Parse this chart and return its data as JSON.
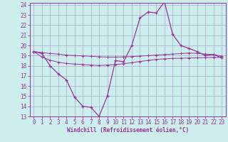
{
  "xlabel": "Windchill (Refroidissement éolien,°C)",
  "background_color": "#cceeed",
  "grid_color": "#aaaacc",
  "line_color": "#993399",
  "spine_color": "#993399",
  "x_hours": [
    0,
    1,
    2,
    3,
    4,
    5,
    6,
    7,
    8,
    9,
    10,
    11,
    12,
    13,
    14,
    15,
    16,
    17,
    18,
    19,
    20,
    21,
    22,
    23
  ],
  "temp_line": [
    19.4,
    19.2,
    18.0,
    17.2,
    16.6,
    14.9,
    14.0,
    13.9,
    13.0,
    15.0,
    18.5,
    18.4,
    20.0,
    22.7,
    23.3,
    23.2,
    24.3,
    21.1,
    20.0,
    19.7,
    19.4,
    19.0,
    19.1,
    18.8
  ],
  "max_line": [
    19.4,
    19.3,
    19.2,
    19.15,
    19.05,
    19.0,
    18.97,
    18.93,
    18.88,
    18.85,
    18.85,
    18.87,
    18.9,
    18.95,
    19.0,
    19.05,
    19.1,
    19.15,
    19.2,
    19.25,
    19.22,
    19.15,
    19.1,
    18.95
  ],
  "min_line": [
    19.4,
    18.85,
    18.55,
    18.35,
    18.22,
    18.17,
    18.12,
    18.07,
    18.02,
    18.07,
    18.12,
    18.2,
    18.3,
    18.42,
    18.52,
    18.62,
    18.68,
    18.72,
    18.74,
    18.76,
    18.78,
    18.8,
    18.82,
    18.82
  ],
  "ylim": [
    13,
    24
  ],
  "xlim": [
    0,
    23
  ],
  "yticks": [
    13,
    14,
    15,
    16,
    17,
    18,
    19,
    20,
    21,
    22,
    23,
    24
  ],
  "xticks": [
    0,
    1,
    2,
    3,
    4,
    5,
    6,
    7,
    8,
    9,
    10,
    11,
    12,
    13,
    14,
    15,
    16,
    17,
    18,
    19,
    20,
    21,
    22,
    23
  ],
  "xlabel_fontsize": 5.5,
  "tick_fontsize": 5.5,
  "marker_size": 3.5
}
